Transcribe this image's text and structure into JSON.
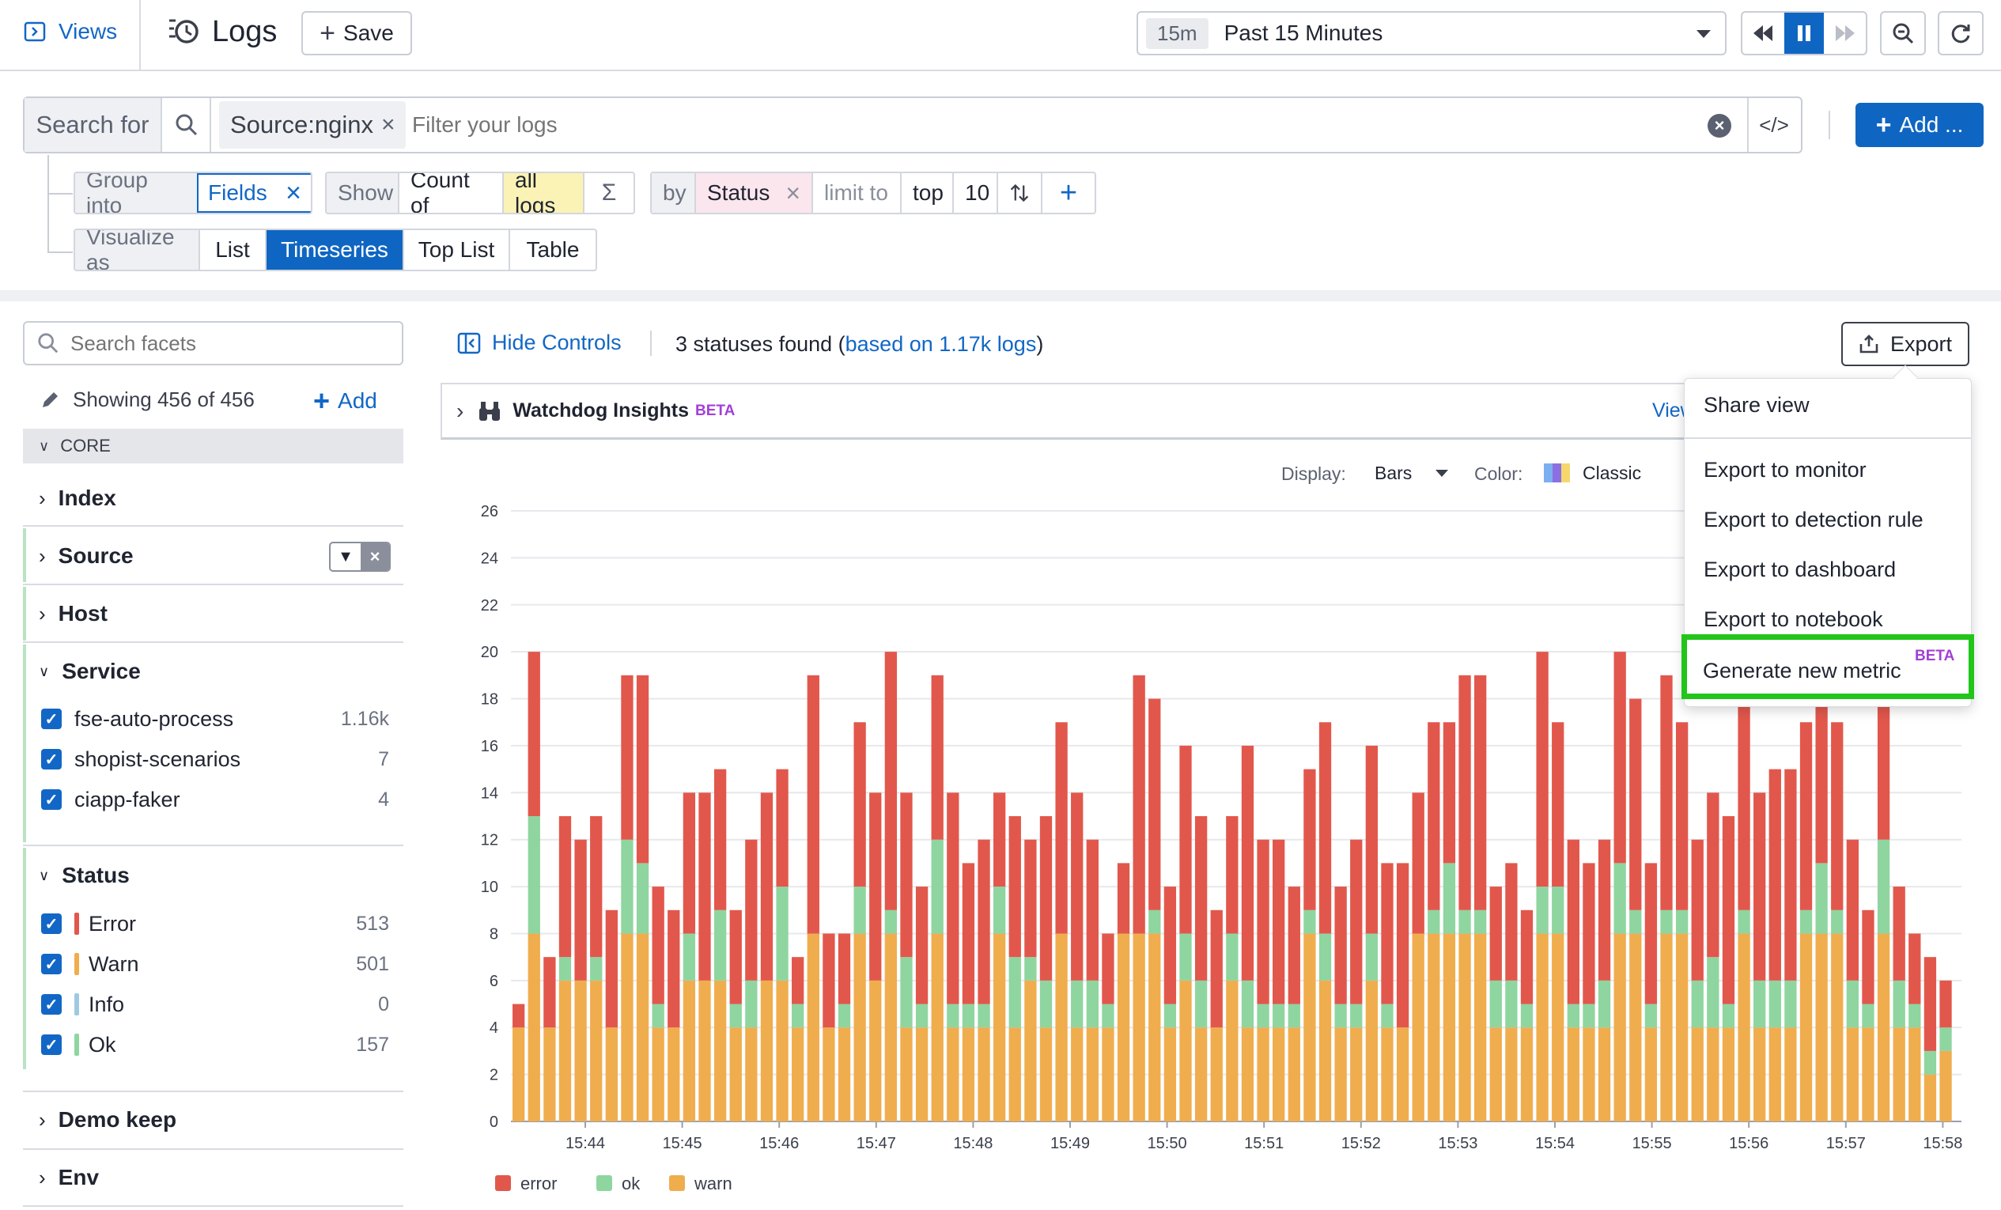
{
  "topbar": {
    "views_label": "Views",
    "logs_title": "Logs",
    "save_label": "Save",
    "time_badge": "15m",
    "time_range": "Past 15 Minutes"
  },
  "query": {
    "search_for": "Search for",
    "tag": "Source:nginx",
    "placeholder": "Filter your logs",
    "add_label": "Add ..."
  },
  "controls": {
    "group_into": "Group into",
    "fields": "Fields",
    "show": "Show",
    "count_of": "Count of",
    "all_logs": "all logs",
    "sigma": "Σ",
    "by": "by",
    "status": "Status",
    "limit_to": "limit to",
    "top": "top",
    "limit_value": "10",
    "visualize_as": "Visualize as",
    "vis_options": [
      "List",
      "Timeseries",
      "Top List",
      "Table"
    ]
  },
  "facets": {
    "search_placeholder": "Search facets",
    "showing": "Showing 456 of 456",
    "add": "Add",
    "core": "CORE",
    "index": "Index",
    "source": "Source",
    "host": "Host",
    "service": "Service",
    "service_items": [
      {
        "label": "fse-auto-process",
        "count": "1.16k"
      },
      {
        "label": "shopist-scenarios",
        "count": "7"
      },
      {
        "label": "ciapp-faker",
        "count": "4"
      }
    ],
    "status": "Status",
    "status_items": [
      {
        "label": "Error",
        "count": "513",
        "color": "#e2574c"
      },
      {
        "label": "Warn",
        "count": "501",
        "color": "#f0ad4e"
      },
      {
        "label": "Info",
        "count": "0",
        "color": "#9ecae1"
      },
      {
        "label": "Ok",
        "count": "157",
        "color": "#8fd5a0"
      }
    ],
    "demo_keep": "Demo keep",
    "env": "Env"
  },
  "results": {
    "hide_controls": "Hide Controls",
    "statuses_found": "3 statuses found (",
    "based_on": "based on 1.17k logs",
    "close_paren": ")",
    "export": "Export",
    "watchdog": "Watchdog Insights",
    "beta": "BETA",
    "view": "View",
    "display_label": "Display:",
    "display_value": "Bars",
    "color_label": "Color:",
    "color_value": "Classic"
  },
  "export_menu": {
    "items": [
      "Share view",
      "Export to monitor",
      "Export to detection rule",
      "Export to dashboard",
      "Export to notebook",
      "Generate new metric"
    ],
    "beta": "BETA",
    "highlight_color": "#22c51a"
  },
  "chart_data": {
    "type": "bar",
    "stacked": true,
    "ylim": [
      0,
      26
    ],
    "y_ticks": [
      0,
      2,
      4,
      6,
      8,
      10,
      12,
      14,
      16,
      18,
      20,
      22,
      24,
      26
    ],
    "x_ticks": [
      "15:44",
      "15:45",
      "15:46",
      "15:47",
      "15:48",
      "15:49",
      "15:50",
      "15:51",
      "15:52",
      "15:53",
      "15:54",
      "15:55",
      "15:56",
      "15:57",
      "15:58"
    ],
    "grid": true,
    "legend_position": "bottom-left",
    "series": [
      {
        "name": "error",
        "color": "#e2574c",
        "values": [
          1,
          7,
          3,
          6,
          6,
          6,
          5,
          7,
          8,
          5,
          5,
          6,
          8,
          6,
          4,
          6,
          8,
          5,
          2,
          11,
          4,
          3,
          7,
          8,
          11,
          7,
          5,
          7,
          9,
          6,
          7,
          4,
          6,
          5,
          7,
          9,
          8,
          6,
          3,
          3,
          11,
          9,
          5,
          8,
          7,
          5,
          5,
          10,
          7,
          7,
          5,
          6,
          9,
          5,
          7,
          8,
          6,
          7,
          6,
          8,
          6,
          10,
          10,
          4,
          5,
          4,
          10,
          7,
          7,
          6,
          6,
          9,
          9,
          6,
          10,
          8,
          6,
          7,
          8,
          9,
          8,
          9,
          9,
          8,
          11,
          8,
          6,
          4,
          8,
          4,
          3,
          4,
          2
        ]
      },
      {
        "name": "ok",
        "color": "#8fd5a0",
        "values": [
          0,
          5,
          0,
          1,
          0,
          1,
          0,
          4,
          3,
          1,
          0,
          2,
          0,
          3,
          1,
          2,
          0,
          4,
          1,
          0,
          0,
          1,
          2,
          0,
          1,
          3,
          1,
          4,
          1,
          1,
          1,
          2,
          3,
          1,
          2,
          0,
          2,
          2,
          1,
          0,
          0,
          1,
          1,
          2,
          2,
          0,
          2,
          2,
          1,
          1,
          1,
          1,
          2,
          1,
          1,
          2,
          1,
          0,
          0,
          1,
          3,
          1,
          1,
          2,
          2,
          1,
          2,
          2,
          1,
          1,
          2,
          3,
          1,
          1,
          1,
          1,
          2,
          3,
          1,
          1,
          2,
          2,
          2,
          1,
          3,
          1,
          2,
          1,
          4,
          2,
          1,
          1,
          1
        ]
      },
      {
        "name": "warn",
        "color": "#f0ad4e",
        "values": [
          4,
          8,
          4,
          6,
          6,
          6,
          4,
          8,
          8,
          4,
          4,
          6,
          6,
          6,
          4,
          4,
          6,
          6,
          4,
          8,
          4,
          4,
          8,
          6,
          8,
          4,
          4,
          8,
          4,
          4,
          4,
          8,
          4,
          6,
          4,
          8,
          4,
          4,
          4,
          8,
          8,
          8,
          4,
          6,
          4,
          4,
          6,
          4,
          4,
          4,
          4,
          8,
          6,
          4,
          4,
          6,
          4,
          4,
          8,
          8,
          8,
          8,
          8,
          4,
          4,
          4,
          8,
          8,
          4,
          4,
          4,
          8,
          8,
          4,
          8,
          8,
          4,
          4,
          4,
          8,
          4,
          4,
          4,
          8,
          8,
          8,
          4,
          4,
          8,
          4,
          4,
          2,
          3
        ]
      }
    ]
  }
}
